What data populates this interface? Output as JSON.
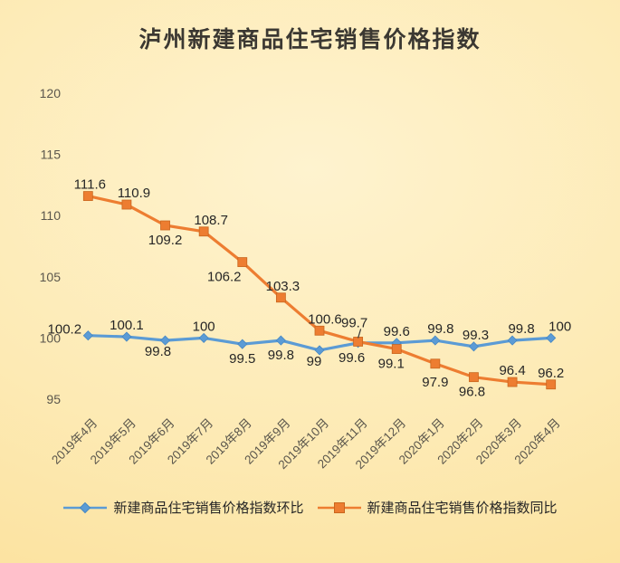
{
  "chart_data": {
    "type": "line",
    "title": "泸州新建商品住宅销售价格指数",
    "categories": [
      "2019年4月",
      "2019年5月",
      "2019年6月",
      "2019年7月",
      "2019年8月",
      "2019年9月",
      "2019年10月",
      "2019年11月",
      "2019年12月",
      "2020年1月",
      "2020年2月",
      "2020年3月",
      "2020年4月"
    ],
    "ylim": [
      95,
      120
    ],
    "y_ticks": [
      95,
      100,
      105,
      110,
      115,
      120
    ],
    "grid": true,
    "legend_position": "bottom",
    "series": [
      {
        "id": "mom",
        "name": "新建商品住宅销售价格指数环比",
        "color": "#5b9bd5",
        "edge_color": "#4587c4",
        "marker": "diamond",
        "values": [
          100.2,
          100.1,
          99.8,
          100,
          99.5,
          99.8,
          99,
          99.6,
          99.6,
          99.8,
          99.3,
          99.8,
          100
        ],
        "labels": [
          "100.2",
          "100.1",
          "99.8",
          "100",
          "99.5",
          "99.8",
          "99",
          "99.6",
          "99.6",
          "99.8",
          "99.3",
          "99.8",
          "100"
        ],
        "label_pos": [
          "above",
          "above",
          "below",
          "above",
          "below",
          "below",
          "below",
          "below",
          "above",
          "above",
          "above",
          "above",
          "above"
        ],
        "label_dx": [
          -26,
          0,
          -8,
          0,
          0,
          0,
          -6,
          -7,
          0,
          6,
          2,
          10,
          10
        ],
        "label_dy": [
          6,
          0,
          -4,
          0,
          0,
          0,
          -4,
          0,
          0,
          0,
          0,
          0,
          0
        ]
      },
      {
        "id": "yoy",
        "name": "新建商品住宅销售价格指数同比",
        "color": "#ed7d31",
        "edge_color": "#c9661e",
        "marker": "square",
        "values": [
          111.6,
          110.9,
          109.2,
          108.7,
          106.2,
          103.3,
          100.6,
          99.7,
          99.1,
          97.9,
          96.8,
          96.4,
          96.2
        ],
        "labels": [
          "111.6",
          "110.9",
          "109.2",
          "108.7",
          "106.2",
          "103.3",
          "100.6",
          "99.7",
          "99.1",
          "97.9",
          "96.8",
          "96.4",
          "96.2"
        ],
        "label_pos": [
          "above",
          "above",
          "below",
          "above",
          "below",
          "above",
          "above",
          "above",
          "below",
          "below",
          "below",
          "above",
          "above"
        ],
        "label_dx": [
          2,
          8,
          0,
          8,
          -20,
          2,
          6,
          -4,
          -6,
          0,
          -2,
          0,
          0
        ],
        "label_dy": [
          0,
          0,
          0,
          0,
          0,
          0,
          0,
          -8,
          0,
          4,
          0,
          0,
          0
        ],
        "leader_index": 7
      }
    ]
  },
  "style": {
    "grid_color": "#d9d2bd",
    "axis_color": "#c5bea9",
    "tick_label_color": "#5a564c",
    "data_label_color": "#262626",
    "title_color": "#3b3832",
    "legend_text_color": "#262626",
    "leader_color": "#3a3a3a"
  }
}
